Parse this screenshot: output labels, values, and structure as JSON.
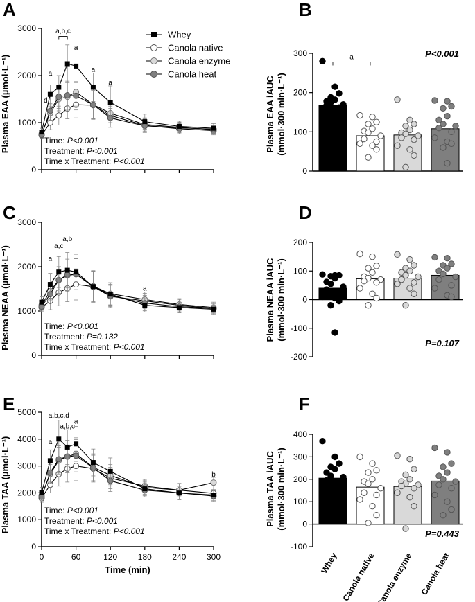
{
  "legend": [
    "Whey",
    "Canola native",
    "Canola enzyme",
    "Canola heat"
  ],
  "colors": {
    "Whey": "#000000",
    "Canola native": "#ffffff",
    "Canola enzyme": "#d9d9d9",
    "Canola heat": "#7f7f7f",
    "axis": "#000000",
    "error": "#888888"
  },
  "x_tick_labels": [
    "0",
    "60",
    "120",
    "180",
    "240",
    "300"
  ],
  "x_label": "Time (min)",
  "categories": [
    "Whey",
    "Canola native",
    "Canola enzyme",
    "Canola heat"
  ],
  "chart_data": [
    {
      "panel": "A",
      "type": "line",
      "ylabel": "Plasma EAA (µmol·L⁻¹)",
      "ylim": [
        0,
        3000
      ],
      "yticks": [
        "0",
        "1000",
        "2000",
        "3000"
      ],
      "x": [
        0,
        15,
        30,
        45,
        60,
        90,
        120,
        180,
        240,
        300
      ],
      "series": [
        {
          "name": "Whey",
          "values": [
            800,
            1600,
            1750,
            2250,
            2200,
            1750,
            1430,
            1020,
            920,
            880
          ],
          "err": [
            80,
            200,
            250,
            400,
            350,
            300,
            350,
            160,
            110,
            100
          ]
        },
        {
          "name": "Canola native",
          "values": [
            730,
            1000,
            1150,
            1300,
            1380,
            1370,
            1150,
            940,
            870,
            830
          ],
          "err": [
            60,
            150,
            200,
            220,
            280,
            300,
            200,
            140,
            110,
            90
          ]
        },
        {
          "name": "Canola enzyme",
          "values": [
            760,
            1200,
            1500,
            1550,
            1650,
            1380,
            1200,
            960,
            900,
            850
          ],
          "err": [
            60,
            150,
            250,
            300,
            300,
            300,
            200,
            140,
            110,
            90
          ]
        },
        {
          "name": "Canola heat",
          "values": [
            740,
            1250,
            1550,
            1580,
            1570,
            1380,
            1100,
            930,
            890,
            860
          ],
          "err": [
            60,
            150,
            250,
            300,
            300,
            300,
            200,
            140,
            110,
            90
          ]
        }
      ],
      "stats": [
        "Time: P<0.001",
        "Treatment: P<0.001",
        "Time x Treatment: P<0.001"
      ],
      "annotations": [
        {
          "text": "a,b,c",
          "x": 37.5,
          "y": 2900
        },
        {
          "text": "a",
          "x": 15,
          "y": 2000
        },
        {
          "text": "d",
          "x": 7,
          "y": 1430
        },
        {
          "text": "a",
          "x": 60,
          "y": 2550
        },
        {
          "text": "a",
          "x": 90,
          "y": 2080
        },
        {
          "text": "a",
          "x": 120,
          "y": 1800
        }
      ]
    },
    {
      "panel": "C",
      "type": "line",
      "ylabel": "Plasma NEAA (µmol·L⁻¹)",
      "ylim": [
        0,
        3000
      ],
      "yticks": [
        "0",
        "1000",
        "2000",
        "3000"
      ],
      "x": [
        0,
        15,
        30,
        45,
        60,
        90,
        120,
        180,
        240,
        300
      ],
      "series": [
        {
          "name": "Whey",
          "values": [
            1200,
            1600,
            1880,
            1920,
            1880,
            1550,
            1380,
            1130,
            1080,
            1040
          ],
          "err": [
            120,
            250,
            350,
            400,
            400,
            350,
            250,
            150,
            120,
            120
          ]
        },
        {
          "name": "Canola native",
          "values": [
            1080,
            1230,
            1420,
            1510,
            1600,
            1550,
            1330,
            1230,
            1130,
            1060
          ],
          "err": [
            100,
            200,
            300,
            300,
            350,
            350,
            250,
            170,
            130,
            120
          ]
        },
        {
          "name": "Canola enzyme",
          "values": [
            1130,
            1450,
            1700,
            1800,
            1830,
            1560,
            1390,
            1260,
            1150,
            1080
          ],
          "err": [
            100,
            200,
            300,
            350,
            350,
            350,
            250,
            170,
            130,
            120
          ]
        },
        {
          "name": "Canola heat",
          "values": [
            1100,
            1380,
            1700,
            1820,
            1830,
            1550,
            1350,
            1180,
            1100,
            1060
          ],
          "err": [
            100,
            200,
            300,
            350,
            350,
            350,
            250,
            170,
            130,
            120
          ]
        }
      ],
      "stats": [
        "Time: P<0.001",
        "Treatment: P=0.132",
        "Time x Treatment: P<0.001"
      ],
      "annotations": [
        {
          "text": "a",
          "x": 15,
          "y": 2130
        },
        {
          "text": "a,c",
          "x": 30,
          "y": 2420
        },
        {
          "text": "a,b",
          "x": 45,
          "y": 2580
        },
        {
          "text": "a",
          "x": 180,
          "y": 1460
        }
      ]
    },
    {
      "panel": "E",
      "type": "line",
      "ylabel": "Plasma TAA (µmol·L⁻¹)",
      "ylim": [
        0,
        5000
      ],
      "yticks": [
        "0",
        "1000",
        "2000",
        "3000",
        "4000",
        "5000"
      ],
      "x": [
        0,
        15,
        30,
        45,
        60,
        90,
        120,
        180,
        240,
        300
      ],
      "series": [
        {
          "name": "Whey",
          "values": [
            2000,
            3200,
            4000,
            3700,
            3820,
            3130,
            2800,
            2150,
            1990,
            1920
          ],
          "err": [
            200,
            400,
            700,
            650,
            650,
            500,
            500,
            250,
            250,
            200
          ]
        },
        {
          "name": "Canola native",
          "values": [
            1800,
            2300,
            2700,
            2900,
            3000,
            2900,
            2550,
            2250,
            2100,
            1980
          ],
          "err": [
            150,
            300,
            450,
            500,
            550,
            500,
            400,
            250,
            250,
            200
          ]
        },
        {
          "name": "Canola enzyme",
          "values": [
            1900,
            2700,
            3200,
            3350,
            3450,
            2950,
            2650,
            2200,
            2100,
            2380
          ],
          "err": [
            150,
            350,
            500,
            600,
            600,
            500,
            400,
            250,
            250,
            200
          ]
        },
        {
          "name": "Canola heat",
          "values": [
            1850,
            2750,
            3250,
            3350,
            3380,
            2930,
            2450,
            2100,
            2000,
            1880
          ],
          "err": [
            150,
            350,
            500,
            600,
            600,
            500,
            400,
            250,
            250,
            200
          ]
        }
      ],
      "stats": [
        "Time: P<0.001",
        "Treatment: P<0.001",
        "Time x Treatment: P<0.001"
      ],
      "annotations": [
        {
          "text": "a",
          "x": 15,
          "y": 3820
        },
        {
          "text": "a,b,c,d",
          "x": 30,
          "y": 4800
        },
        {
          "text": "a,b,c",
          "x": 45,
          "y": 4400
        },
        {
          "text": "a",
          "x": 60,
          "y": 4580
        },
        {
          "text": "b",
          "x": 300,
          "y": 2600
        }
      ]
    },
    {
      "panel": "B",
      "type": "bar",
      "ylabel": "Plasma EAA iAUC (mmol·300 min·L⁻¹)",
      "ylim": [
        0,
        300
      ],
      "yticks": [
        "0",
        "100",
        "200",
        "300"
      ],
      "categories": [
        "Whey",
        "Canola native",
        "Canola enzyme",
        "Canola heat"
      ],
      "values": [
        168,
        90,
        92,
        108
      ],
      "points": [
        [
          280,
          215,
          198,
          188,
          182,
          178,
          175,
          170,
          168,
          162,
          155,
          148,
          140,
          120,
          95,
          62
        ],
        [
          142,
          138,
          125,
          120,
          108,
          102,
          98,
          90,
          82,
          75,
          70,
          65,
          55,
          35
        ],
        [
          182,
          130,
          120,
          115,
          105,
          98,
          95,
          90,
          85,
          80,
          65,
          55,
          40,
          10
        ],
        [
          180,
          178,
          165,
          160,
          140,
          130,
          120,
          115,
          110,
          100,
          85,
          75,
          70,
          60,
          20
        ]
      ],
      "pvalue": "P<0.001",
      "bracket_label": "a"
    },
    {
      "panel": "D",
      "type": "bar",
      "ylabel": "Plasma NEAA iAUC (mmol·300 min·L⁻¹)",
      "ylim": [
        -200,
        200
      ],
      "yticks": [
        "-200",
        "-100",
        "0",
        "100",
        "200"
      ],
      "categories": [
        "Whey",
        "Canola native",
        "Canola enzyme",
        "Canola heat"
      ],
      "values": [
        40,
        73,
        75,
        85
      ],
      "points": [
        [
          88,
          85,
          85,
          82,
          75,
          62,
          55,
          45,
          35,
          20,
          10,
          5,
          -5,
          -20,
          -115
        ],
        [
          160,
          150,
          118,
          110,
          95,
          80,
          75,
          70,
          65,
          60,
          40,
          20,
          5,
          -20
        ],
        [
          158,
          140,
          120,
          110,
          100,
          95,
          85,
          80,
          70,
          60,
          55,
          40,
          20,
          -20
        ],
        [
          148,
          145,
          125,
          120,
          110,
          100,
          90,
          80,
          70,
          50,
          40,
          15,
          10
        ]
      ],
      "pvalue": "P=0.107"
    },
    {
      "panel": "F",
      "type": "bar",
      "ylabel": "Plasma TAA iAUC (mmol·300 min·L⁻¹)",
      "ylim": [
        -100,
        400
      ],
      "yticks": [
        "-100",
        "0",
        "100",
        "200",
        "300",
        "400"
      ],
      "categories": [
        "Whey",
        "Canola native",
        "Canola enzyme",
        "Canola heat"
      ],
      "values": [
        205,
        165,
        168,
        192
      ],
      "points": [
        [
          370,
          300,
          270,
          255,
          245,
          230,
          215,
          210,
          195,
          180,
          160,
          130,
          110,
          80,
          60
        ],
        [
          300,
          270,
          240,
          230,
          200,
          190,
          180,
          160,
          140,
          130,
          110,
          80,
          40,
          5
        ],
        [
          305,
          290,
          245,
          220,
          200,
          190,
          180,
          175,
          170,
          160,
          140,
          120,
          80,
          -20
        ],
        [
          340,
          320,
          270,
          255,
          230,
          215,
          200,
          190,
          175,
          160,
          130,
          100,
          65,
          40
        ]
      ],
      "pvalue": "P=0.443"
    }
  ]
}
